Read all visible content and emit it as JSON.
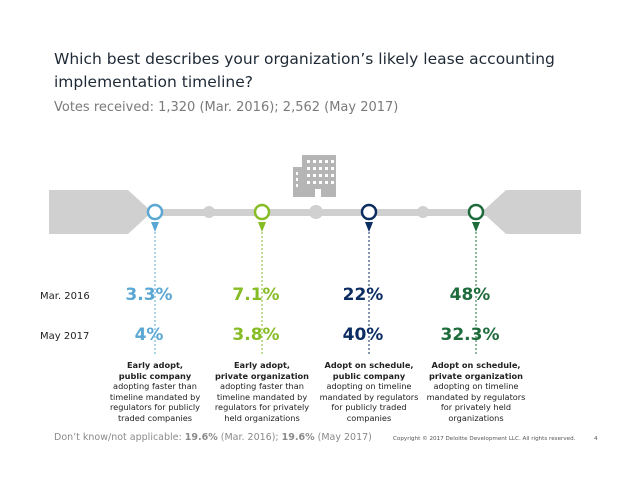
{
  "slide": {
    "title": "Which best describes your organization’s likely lease accounting implementation timeline?",
    "subtitle": "Votes received: 1,320 (Mar. 2016); 2,562 (May 2017)",
    "footer": {
      "prefix": "Don’t know/not applicable: ",
      "value1": "19.6%",
      "mid1": " (Mar. 2016); ",
      "value2": "19.6%",
      "suffix": " (May 2017)"
    },
    "copyright": "Copyright © 2017 Deloitte Development LLC. All rights reserved.",
    "page_number": "4"
  },
  "colors": {
    "cat1": "#5ba7d3",
    "cat2": "#86bc25",
    "cat3": "#0c2d61",
    "cat4": "#1e6b3b",
    "track": "#d0d0d0",
    "building": "#b5b5b5"
  },
  "chart_data": {
    "type": "table",
    "row_labels": [
      "Mar. 2016",
      "May 2017"
    ],
    "categories": [
      {
        "title": "Early adopt, public company",
        "title_lines": [
          "Early adopt,",
          "public company"
        ],
        "desc_lines": [
          "adopting faster than",
          "timeline mandated by",
          "regulators for publicly",
          "traded companies"
        ]
      },
      {
        "title": "Early adopt, private organization",
        "title_lines": [
          "Early adopt,",
          "private organization"
        ],
        "desc_lines": [
          "adopting faster than",
          "timeline mandated by",
          "regulators for privately",
          "held organizations"
        ]
      },
      {
        "title": "Adopt on schedule, public company",
        "title_lines": [
          "Adopt on schedule,",
          "public company"
        ],
        "desc_lines": [
          "adopting on timeline",
          "mandated by regulators",
          "for publicly traded",
          "companies"
        ]
      },
      {
        "title": "Adopt on schedule, private organization",
        "title_lines": [
          "Adopt on schedule,",
          "private organization"
        ],
        "desc_lines": [
          "adopting on timeline",
          "mandated by regulators",
          "for privately held",
          "organizations"
        ]
      }
    ],
    "series": [
      {
        "name": "Mar. 2016",
        "values": [
          3.3,
          7.1,
          22,
          48
        ],
        "labels": [
          "3.3%",
          "7.1%",
          "22%",
          "48%"
        ]
      },
      {
        "name": "May 2017",
        "values": [
          4,
          3.8,
          40,
          32.3
        ],
        "labels": [
          "4%",
          "3.8%",
          "40%",
          "32.3%"
        ]
      }
    ],
    "unit": "%"
  }
}
